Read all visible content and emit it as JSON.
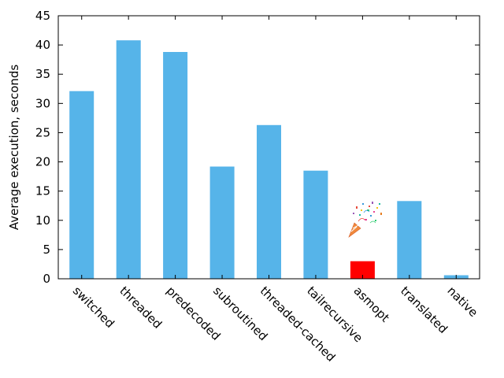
{
  "chart_data": {
    "type": "bar",
    "title": "",
    "xlabel": "",
    "ylabel": "Average execution, seconds",
    "categories": [
      "switched",
      "threaded",
      "predecoded",
      "subroutined",
      "threaded-cached",
      "tailrecursive",
      "asmopt",
      "translated",
      "native"
    ],
    "values": [
      32.1,
      40.8,
      38.8,
      19.2,
      26.3,
      18.5,
      3.0,
      13.3,
      0.6
    ],
    "bar_colors": [
      "#56b4e9",
      "#56b4e9",
      "#56b4e9",
      "#56b4e9",
      "#56b4e9",
      "#56b4e9",
      "#ff0000",
      "#56b4e9",
      "#56b4e9"
    ],
    "ylim": [
      0,
      45
    ],
    "yticks": [
      0,
      5,
      10,
      15,
      20,
      25,
      30,
      35,
      40,
      45
    ],
    "grid": false,
    "legend": "none",
    "annotations": [
      {
        "type": "party-popper-icon",
        "near_category": "asmopt"
      }
    ]
  }
}
